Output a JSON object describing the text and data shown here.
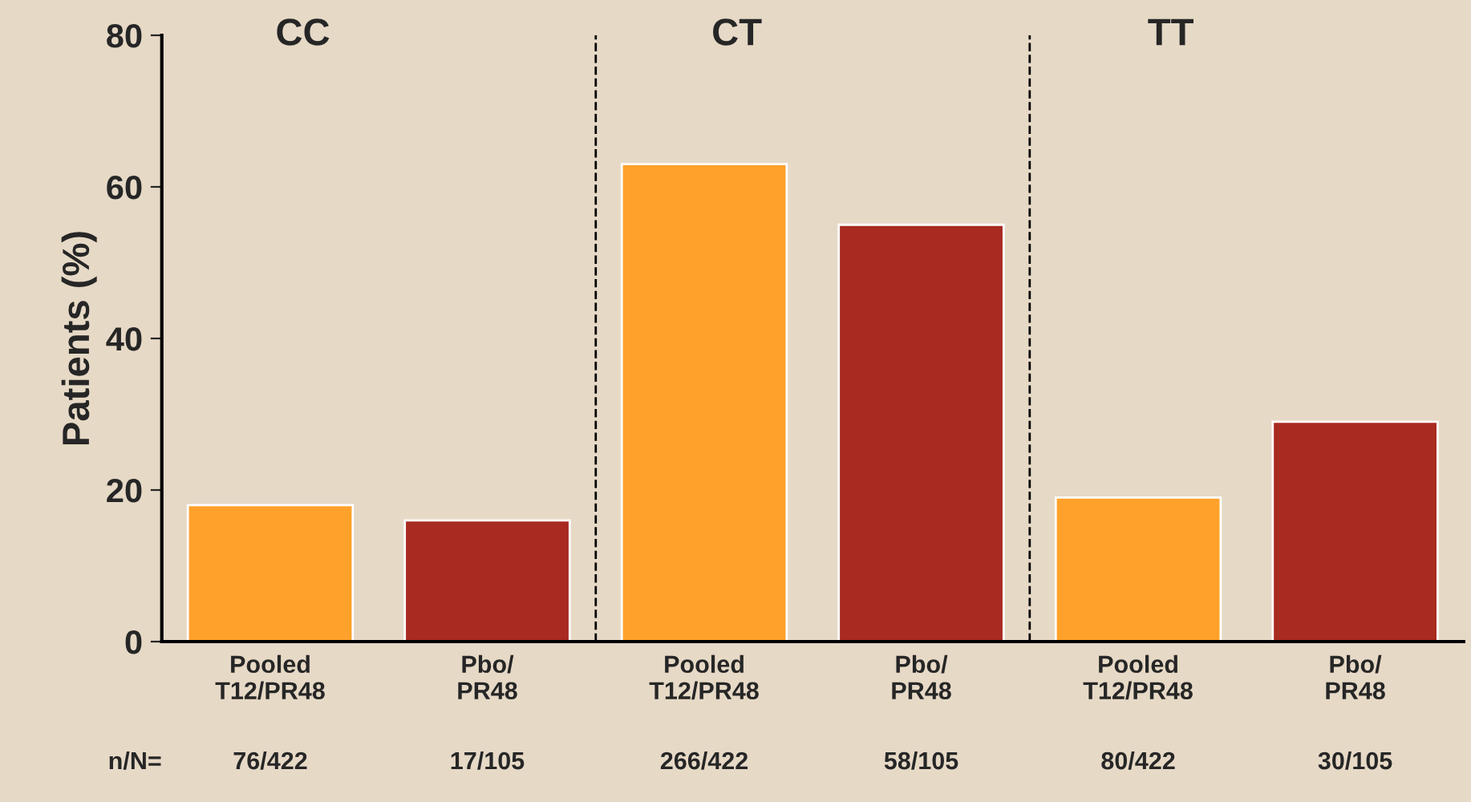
{
  "chart_data": {
    "type": "bar",
    "ylabel": "Patients (%)",
    "categories": [
      "Pooled\nT12/PR48",
      "Pbo/\nPR48",
      "Pooled\nT12/PR48",
      "Pbo/\nPR48",
      "Pooled\nT12/PR48",
      "Pbo/\nPR48"
    ],
    "values": [
      18,
      16,
      63,
      55,
      19,
      29
    ],
    "colors": [
      "#ffa12a",
      "#a82a20",
      "#ffa12a",
      "#a82a20",
      "#ffa12a",
      "#a82a20"
    ],
    "ylim": [
      0,
      80
    ],
    "yticks": [
      0,
      20,
      40,
      60,
      80
    ],
    "grid": false,
    "legend": false,
    "annotations": [
      "CC",
      "CT",
      "TT",
      "n/N=",
      "76/422",
      "17/105",
      "266/422",
      "58/105",
      "80/422",
      "30/105"
    ]
  }
}
